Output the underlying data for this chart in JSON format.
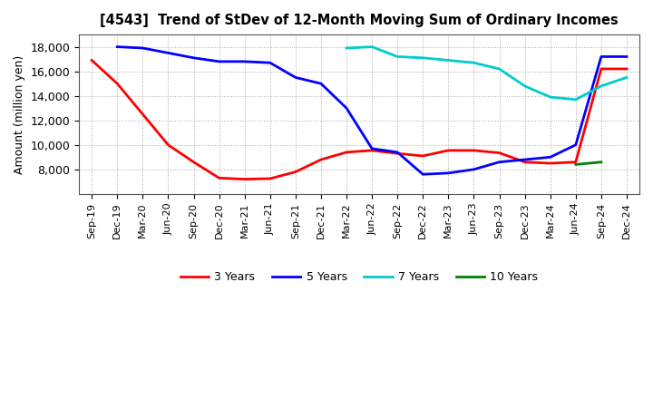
{
  "title": "[4543]  Trend of StDev of 12-Month Moving Sum of Ordinary Incomes",
  "ylabel": "Amount (million yen)",
  "background_color": "#ffffff",
  "grid_color": "#aaaaaa",
  "ylim": [
    6000,
    19000
  ],
  "yticks": [
    8000,
    10000,
    12000,
    14000,
    16000,
    18000
  ],
  "date_keys": [
    "Sep-19",
    "Dec-19",
    "Mar-20",
    "Jun-20",
    "Sep-20",
    "Dec-20",
    "Mar-21",
    "Jun-21",
    "Sep-21",
    "Dec-21",
    "Mar-22",
    "Jun-22",
    "Sep-22",
    "Dec-22",
    "Mar-23",
    "Jun-23",
    "Sep-23",
    "Dec-23",
    "Mar-24",
    "Jun-24",
    "Sep-24",
    "Dec-24"
  ],
  "series": {
    "3 Years": {
      "color": "#ff0000",
      "date_indices": [
        0,
        1,
        2,
        3,
        4,
        5,
        6,
        7,
        8,
        9,
        10,
        11,
        12,
        13,
        14,
        15,
        16,
        17,
        18,
        19,
        20,
        21
      ],
      "values": [
        16900,
        15000,
        12500,
        10000,
        8600,
        7300,
        7200,
        7250,
        7800,
        8800,
        9400,
        9550,
        9300,
        9100,
        9550,
        9550,
        9350,
        8600,
        8500,
        8600,
        16200,
        16200
      ]
    },
    "5 Years": {
      "color": "#0000ff",
      "date_indices": [
        1,
        2,
        3,
        4,
        5,
        6,
        7,
        8,
        9,
        10,
        11,
        12,
        13,
        14,
        15,
        16,
        17,
        18,
        19,
        20,
        21
      ],
      "values": [
        18000,
        17900,
        17500,
        17100,
        16800,
        16800,
        16700,
        15500,
        15000,
        13000,
        9700,
        9400,
        7600,
        7700,
        8000,
        8600,
        8800,
        9000,
        10000,
        17200,
        17200
      ]
    },
    "7 Years": {
      "color": "#00cccc",
      "date_indices": [
        10,
        11,
        12,
        13,
        14,
        15,
        16,
        17,
        18,
        19,
        20,
        21
      ],
      "values": [
        17900,
        18000,
        17200,
        17100,
        16900,
        16700,
        16200,
        14800,
        13900,
        13700,
        14800,
        15500
      ]
    },
    "10 Years": {
      "color": "#008000",
      "date_indices": [
        19,
        20
      ],
      "values": [
        8400,
        8600
      ]
    }
  },
  "legend_order": [
    "3 Years",
    "5 Years",
    "7 Years",
    "10 Years"
  ]
}
